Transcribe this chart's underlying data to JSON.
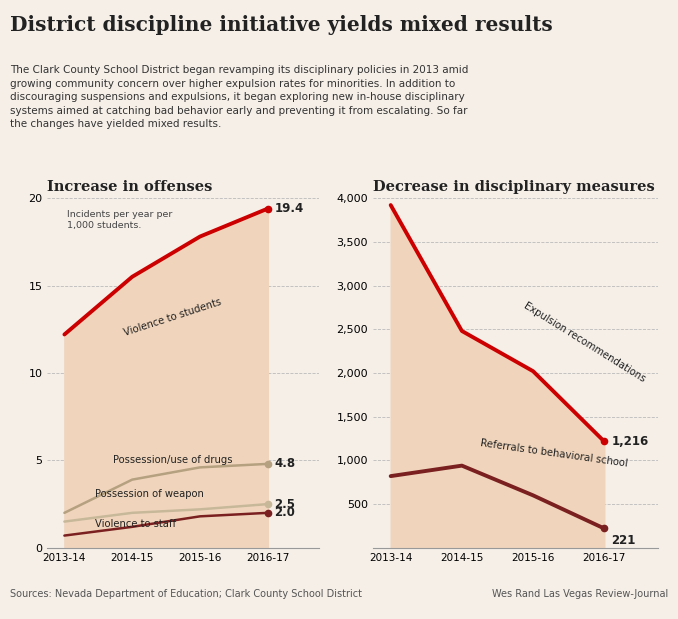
{
  "title": "District discipline initiative yields mixed results",
  "subtitle": "The Clark County School District began revamping its disciplinary policies in 2013 amid\ngrowing community concern over higher expulsion rates for minorities. In addition to\ndiscouraging suspensions and expulsions, it began exploring new in-house disciplinary\nsystems aimed at catching bad behavior early and preventing it from escalating. So far\nthe changes have yielded mixed results.",
  "source": "Sources: Nevada Department of Education; Clark County School District",
  "credit": "Wes Rand Las Vegas Review-Journal",
  "left_title": "Increase in offenses",
  "right_title": "Decrease in disciplinary measures",
  "left_note": "Incidents per year per\n1,000 students.",
  "years": [
    "2013-14",
    "2014-15",
    "2015-16",
    "2016-17"
  ],
  "left_series": {
    "violence_students": {
      "values": [
        12.2,
        15.5,
        17.8,
        19.4
      ],
      "color": "#cc0000",
      "label": "Violence to students"
    },
    "drugs": {
      "values": [
        2.0,
        3.9,
        4.6,
        4.8
      ],
      "color": "#b5a080",
      "label": "Possession/use of drugs"
    },
    "weapon": {
      "values": [
        1.5,
        2.0,
        2.2,
        2.5
      ],
      "color": "#c8b89a",
      "label": "Possession of weapon"
    },
    "staff": {
      "values": [
        0.7,
        1.2,
        1.8,
        2.0
      ],
      "color": "#7b2020",
      "label": "Violence to staff"
    }
  },
  "left_end_vals": {
    "violence_students": "19.4",
    "drugs": "4.8",
    "weapon": "2.5",
    "staff": "2.0"
  },
  "left_ylim": [
    0,
    20
  ],
  "left_yticks": [
    0,
    5,
    10,
    15,
    20
  ],
  "right_series": {
    "expulsion": {
      "values": [
        3920,
        2480,
        2020,
        1216
      ],
      "color": "#cc0000",
      "label": "Expulsion recommendations"
    },
    "referrals": {
      "values": [
        820,
        940,
        600,
        221
      ],
      "color": "#7b2020",
      "label": "Referrals to behavioral school"
    }
  },
  "right_end_vals": {
    "expulsion": "1,216",
    "referrals": "221"
  },
  "right_ylim": [
    0,
    4000
  ],
  "right_yticks": [
    0,
    500,
    1000,
    1500,
    2000,
    2500,
    3000,
    3500,
    4000
  ],
  "fill_color": "#f0d5bc",
  "bg_color": "#f5efe8",
  "grid_color": "#bbbbbb",
  "text_color": "#222222"
}
